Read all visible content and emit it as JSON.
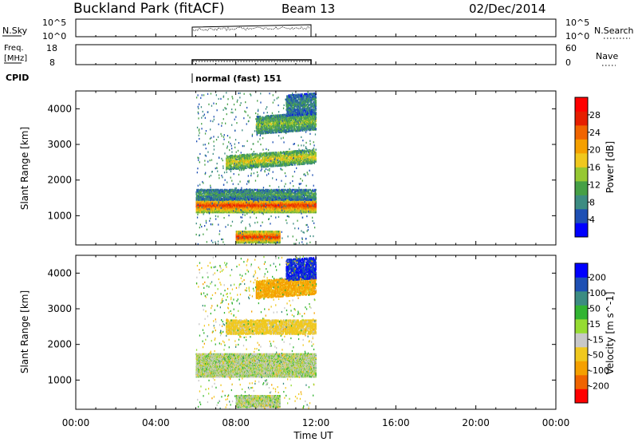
{
  "header": {
    "title": "Buckland Park (fitACF)",
    "beam": "Beam 13",
    "date": "02/Dec/2014"
  },
  "top_panels": {
    "nsky_label": "N.Sky",
    "nsky_ticks": [
      "10^5",
      "10^0"
    ],
    "nsearch_label": "N.Search",
    "nsearch_ticks": [
      "10^5",
      "10^0"
    ],
    "freq_label_1": "Freq.",
    "freq_label_2": "[MHz]",
    "freq_ticks": [
      "18",
      "8"
    ],
    "nave_label": "Nave",
    "nave_ticks": [
      "60",
      "0"
    ],
    "cpid_label": "CPID",
    "cpid_text": "normal (fast) 151"
  },
  "chart_data": [
    {
      "type": "heatmap",
      "name": "power",
      "ylabel": "Slant Range [km]",
      "ytick_labels": [
        "1000",
        "2000",
        "3000",
        "4000"
      ],
      "yticks": [
        1000,
        2000,
        3000,
        4000
      ],
      "ylim": [
        180,
        4500
      ],
      "xlim": [
        0,
        24
      ],
      "colorbar": {
        "label": "Power [dB]",
        "tick_labels": [
          "4",
          "8",
          "12",
          "16",
          "20",
          "24",
          "28"
        ],
        "range": [
          0,
          32
        ],
        "colors": [
          "#0000ff",
          "#1e50b4",
          "#3c8c82",
          "#46a046",
          "#96c832",
          "#f0c81e",
          "#f5a000",
          "#f06400",
          "#e61e00",
          "#ff0000"
        ]
      },
      "data_extent_hours": [
        6.0,
        12.0
      ],
      "bands": [
        {
          "range_km": [
            250,
            580
          ],
          "t_hours": [
            8.0,
            10.2
          ],
          "power_db": 29
        },
        {
          "range_km": [
            1100,
            1500
          ],
          "t_hours": [
            6.0,
            12.0
          ],
          "power_db": 28
        },
        {
          "range_km": [
            1450,
            1750
          ],
          "t_hours": [
            6.0,
            12.0
          ],
          "power_db": 10
        },
        {
          "range_km": [
            2300,
            2700
          ],
          "t_hours": [
            7.5,
            12.0
          ],
          "power_db": 18
        },
        {
          "range_km": [
            3300,
            3800
          ],
          "t_hours": [
            9.0,
            12.0
          ],
          "power_db": 14
        },
        {
          "range_km": [
            3800,
            4400
          ],
          "t_hours": [
            10.5,
            12.0
          ],
          "power_db": 8
        }
      ]
    },
    {
      "type": "heatmap",
      "name": "velocity",
      "ylabel": "Slant Range [km]",
      "ytick_labels": [
        "1000",
        "2000",
        "3000",
        "4000"
      ],
      "yticks": [
        1000,
        2000,
        3000,
        4000
      ],
      "ylim": [
        180,
        4500
      ],
      "xlim": [
        0,
        24
      ],
      "xlabel": "Time UT",
      "xtick_labels": [
        "00:00",
        "04:00",
        "08:00",
        "12:00",
        "16:00",
        "20:00",
        "00:00"
      ],
      "xticks": [
        0,
        4,
        8,
        12,
        16,
        20,
        24
      ],
      "colorbar": {
        "label": "Velocity [m s^-1]",
        "tick_labels": [
          "200",
          "100",
          "50",
          "15",
          "-15",
          "-50",
          "-100",
          "-200"
        ],
        "colors": [
          "#0000ff",
          "#1e50b4",
          "#3c8c82",
          "#32b432",
          "#96dc32",
          "#c8c8c8",
          "#f0c81e",
          "#f5a000",
          "#f06400",
          "#ff0000"
        ]
      },
      "data_extent_hours": [
        6.0,
        12.0
      ],
      "bands": [
        {
          "range_km": [
            250,
            580
          ],
          "t_hours": [
            8.0,
            10.2
          ],
          "velocity": 0
        },
        {
          "range_km": [
            1100,
            1750
          ],
          "t_hours": [
            6.0,
            12.0
          ],
          "velocity": 0
        },
        {
          "range_km": [
            2300,
            2700
          ],
          "t_hours": [
            7.5,
            12.0
          ],
          "velocity": -30
        },
        {
          "range_km": [
            3300,
            3800
          ],
          "t_hours": [
            9.0,
            12.0
          ],
          "velocity": -60
        },
        {
          "range_km": [
            3800,
            4400
          ],
          "t_hours": [
            10.5,
            12.0
          ],
          "velocity": 150
        }
      ]
    }
  ]
}
